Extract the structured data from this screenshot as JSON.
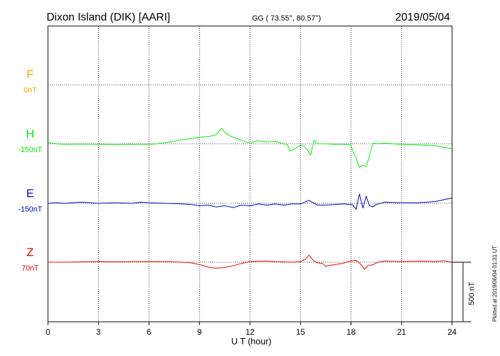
{
  "header": {
    "station": "Dixon Island (DIK)  [AARI]",
    "coords": "GG ( 73.55°,  80.57°)",
    "date": "2019/05/04"
  },
  "side_note": "Plotted at 2019/06/04 01:31  UT",
  "scale_label": "500 nT",
  "chart_data": {
    "type": "line",
    "xlabel": "U T (hour)",
    "xlim": [
      0,
      24
    ],
    "xticks": [
      "0",
      "3",
      "6",
      "9",
      "12",
      "15",
      "18",
      "21",
      "24"
    ],
    "scale_bar_nT": 500,
    "grid": true,
    "series": [
      {
        "name": "F",
        "baseline_label": "0nT",
        "color": "#ffa500",
        "x": [],
        "y": []
      },
      {
        "name": "H",
        "baseline_label": "-150nT",
        "color": "#00ee00",
        "x": [
          0,
          0.5,
          1,
          2,
          3,
          4,
          5,
          6,
          6.5,
          7,
          7.5,
          8,
          8.5,
          9,
          9.5,
          10,
          10.3,
          10.5,
          10.8,
          11,
          11.5,
          12,
          12.3,
          12.5,
          13,
          13.5,
          14,
          14.2,
          14.4,
          14.7,
          15,
          15.2,
          15.4,
          15.6,
          15.8,
          16,
          16.5,
          17,
          17.5,
          18,
          18.1,
          18.3,
          18.5,
          18.7,
          18.9,
          19.1,
          19.3,
          19.6,
          20,
          21,
          22,
          23,
          23.5,
          24
        ],
        "y": [
          10,
          0,
          -5,
          -3,
          -5,
          -7,
          -5,
          -5,
          0,
          10,
          20,
          35,
          45,
          55,
          60,
          75,
          130,
          95,
          65,
          55,
          30,
          5,
          20,
          25,
          15,
          20,
          0,
          -5,
          -60,
          -40,
          -10,
          -20,
          -50,
          -95,
          30,
          0,
          0,
          -5,
          -5,
          -10,
          -60,
          -120,
          -200,
          -180,
          -190,
          -100,
          5,
          0,
          5,
          -5,
          -10,
          -15,
          -30,
          -40
        ]
      },
      {
        "name": "E",
        "baseline_label": "-150nT",
        "color": "#0000cc",
        "x": [
          0,
          0.5,
          1,
          2,
          3,
          4,
          5,
          5.5,
          6,
          7,
          8,
          8.5,
          9,
          9.5,
          10,
          10.5,
          11,
          11.5,
          12,
          12.5,
          13,
          13.5,
          14,
          14.5,
          15,
          15.5,
          16,
          16.5,
          17,
          17.5,
          18,
          18.1,
          18.3,
          18.5,
          18.7,
          18.9,
          19.1,
          19.3,
          19.5,
          20,
          21,
          22,
          22.5,
          23,
          23.5,
          24
        ],
        "y": [
          0,
          5,
          0,
          10,
          0,
          5,
          0,
          10,
          5,
          0,
          -5,
          -10,
          -20,
          -15,
          -30,
          -20,
          -35,
          -15,
          -20,
          -5,
          -15,
          -5,
          -15,
          -5,
          -5,
          25,
          -15,
          -15,
          -10,
          -5,
          -10,
          -15,
          -50,
          80,
          -40,
          60,
          -20,
          -30,
          -10,
          10,
          5,
          5,
          10,
          15,
          30,
          45
        ]
      },
      {
        "name": "Z",
        "baseline_label": "70nT",
        "color": "#ee0000",
        "x": [
          0,
          1,
          2,
          3,
          4,
          5,
          6,
          7,
          8,
          8.5,
          9,
          9.5,
          10,
          10.5,
          11,
          11.5,
          12,
          12.5,
          13,
          13.5,
          14,
          14.5,
          15,
          15.3,
          15.5,
          15.8,
          16,
          16.3,
          16.5,
          17,
          17.5,
          18,
          18.3,
          18.6,
          18.8,
          19,
          19.3,
          19.6,
          20,
          21,
          22,
          23,
          23.5,
          24
        ],
        "y": [
          0,
          0,
          3,
          5,
          3,
          5,
          5,
          5,
          0,
          -5,
          -20,
          -40,
          -50,
          -45,
          -30,
          -10,
          5,
          8,
          10,
          5,
          3,
          0,
          5,
          25,
          60,
          10,
          -5,
          -10,
          -35,
          -20,
          -10,
          10,
          15,
          -20,
          -60,
          -30,
          -20,
          0,
          10,
          5,
          10,
          5,
          12,
          0
        ]
      }
    ]
  }
}
